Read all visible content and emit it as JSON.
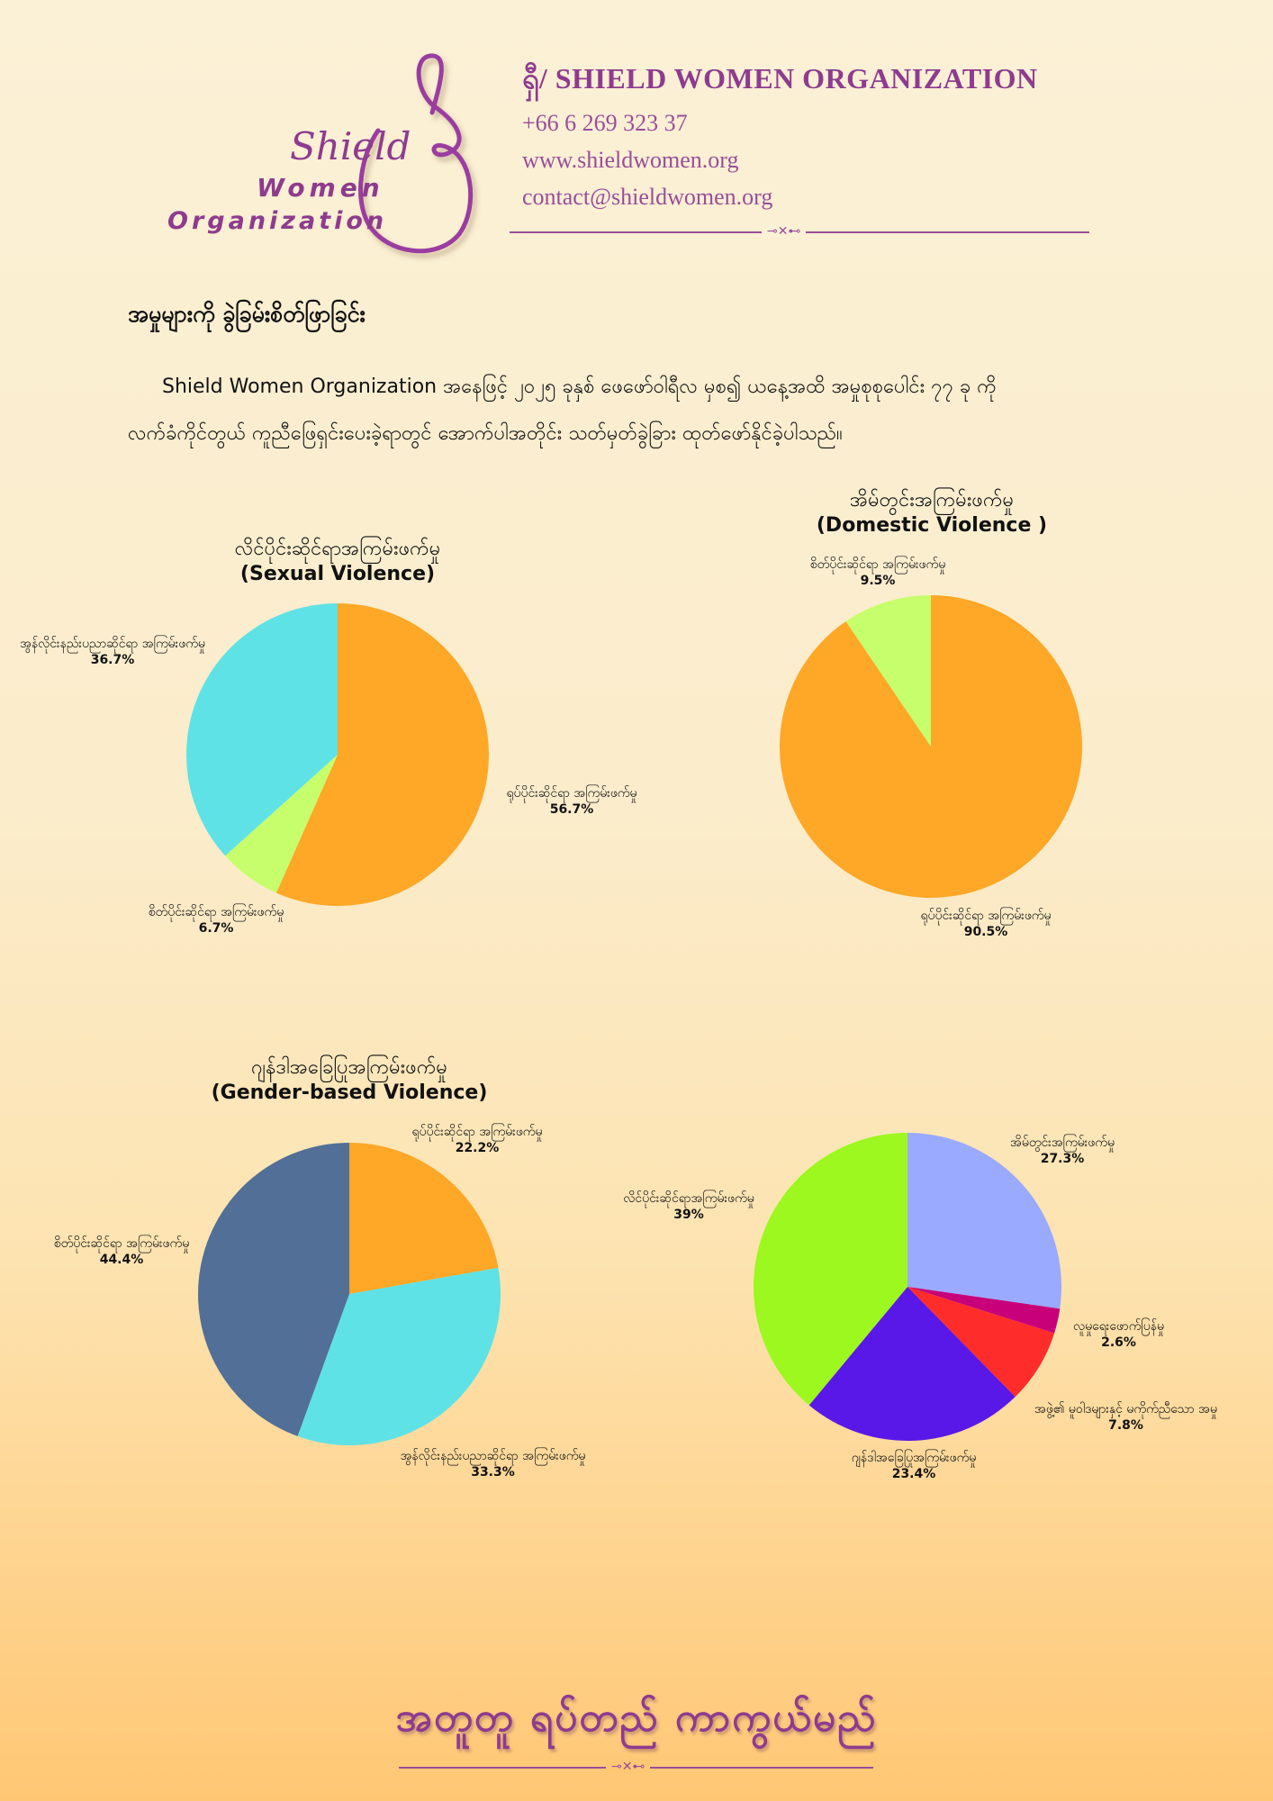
{
  "logo": {
    "word1": "Shield",
    "word2": "Women",
    "word3": "Organization"
  },
  "header": {
    "title": "ရှီ/ SHIELD WOMEN ORGANIZATION",
    "phone": "+66 6 269 323 37",
    "website": "www.shieldwomen.org",
    "email": "contact@shieldwomen.org"
  },
  "section": {
    "heading": "အမှုများကို ခွဲခြမ်းစိတ်ဖြာခြင်း",
    "para_line1": "Shield Women Organization အနေဖြင့် ၂၀၂၅ ခုနှစ် ဖေဖော်ဝါရီလ မှစ၍ ယနေ့အထိ အမှုစုစုပေါင်း ၇၇ ခု ကို",
    "para_line2": "လက်ခံကိုင်တွယ် ကူညီဖြေရှင်းပေးခဲ့ရာတွင် အောက်ပါအတိုင်း သတ်မှတ်ခွဲခြား ထုတ်ဖော်နိုင်ခဲ့ပါသည်။"
  },
  "chart_data": [
    {
      "type": "pie",
      "title": "လိင်ပိုင်းဆိုင်ရာအကြမ်းဖက်မှု",
      "subtitle": "(Sexual Violence)",
      "slices": [
        {
          "label": "ရုပ်ပိုင်းဆိုင်ရာ အကြမ်းဖက်မှု",
          "value": 56.7,
          "pct": "56.7%",
          "color": "#ffa726"
        },
        {
          "label": "စိတ်ပိုင်းဆိုင်ရာ အကြမ်းဖက်မှု",
          "value": 6.7,
          "pct": "6.7%",
          "color": "#c6ff6b"
        },
        {
          "label": "အွန်လိုင်းနည်းပညာဆိုင်ရာ အကြမ်းဖက်မှု",
          "value": 36.7,
          "pct": "36.7%",
          "color": "#5ee2e6"
        }
      ]
    },
    {
      "type": "pie",
      "title": "အိမ်တွင်းအကြမ်းဖက်မှု",
      "subtitle": "(Domestic Violence )",
      "slices": [
        {
          "label": "ရုပ်ပိုင်းဆိုင်ရာ အကြမ်းဖက်မှု",
          "value": 90.5,
          "pct": "90.5%",
          "color": "#ffa726"
        },
        {
          "label": "စိတ်ပိုင်းဆိုင်ရာ အကြမ်းဖက်မှု",
          "value": 9.5,
          "pct": "9.5%",
          "color": "#c6ff6b"
        }
      ]
    },
    {
      "type": "pie",
      "title": "ဂျန်ဒါအခြေပြုအကြမ်းဖက်မှု",
      "subtitle": "(Gender-based Violence)",
      "slices": [
        {
          "label": "ရုပ်ပိုင်းဆိုင်ရာ အကြမ်းဖက်မှု",
          "value": 22.2,
          "pct": "22.2%",
          "color": "#ffa726"
        },
        {
          "label": "အွန်လိုင်းနည်းပညာဆိုင်ရာ အကြမ်းဖက်မှု",
          "value": 33.3,
          "pct": "33.3%",
          "color": "#5ee2e6"
        },
        {
          "label": "စိတ်ပိုင်းဆိုင်ရာ အကြမ်းဖက်မှု",
          "value": 44.4,
          "pct": "44.4%",
          "color": "#516f97"
        }
      ]
    },
    {
      "type": "pie",
      "title": "",
      "subtitle": "",
      "slices": [
        {
          "label": "အိမ်တွင်းအကြမ်းဖက်မှု",
          "value": 27.3,
          "pct": "27.3%",
          "color": "#99aaff"
        },
        {
          "label": "လူမှုရေးဖောက်ပြန်မှု",
          "value": 2.6,
          "pct": "2.6%",
          "color": "#c8007a"
        },
        {
          "label": "အဖွဲ့၏ မူဝါဒများနှင့် မကိုက်ညီသော အမှု",
          "value": 7.8,
          "pct": "7.8%",
          "color": "#ff2c2c"
        },
        {
          "label": "ဂျန်ဒါအခြေပြုအကြမ်းဖက်မှု",
          "value": 23.4,
          "pct": "23.4%",
          "color": "#5a18e8"
        },
        {
          "label": "လိင်ပိုင်းဆိုင်ရာအကြမ်းဖက်မှု",
          "value": 39,
          "pct": "39%",
          "color": "#9cf81f"
        }
      ]
    }
  ],
  "footer": {
    "slogan": "အတူတူ ရပ်တည် ကာကွယ်မည်"
  }
}
